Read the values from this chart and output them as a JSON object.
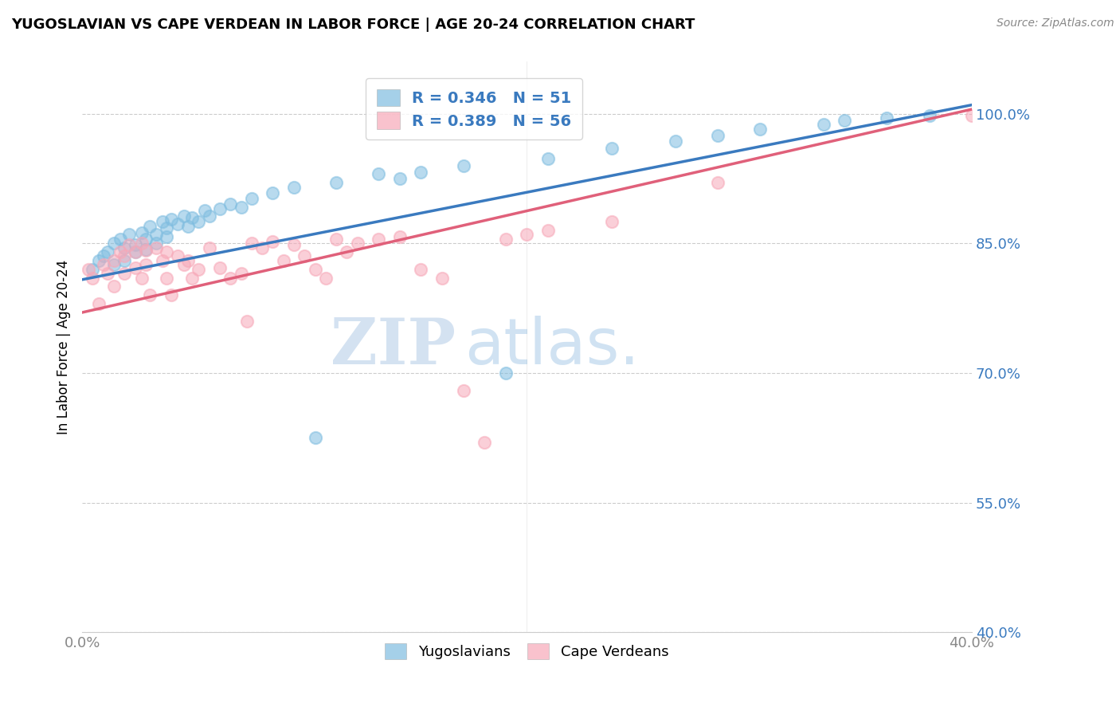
{
  "title": "YUGOSLAVIAN VS CAPE VERDEAN IN LABOR FORCE | AGE 20-24 CORRELATION CHART",
  "source": "Source: ZipAtlas.com",
  "ylabel": "In Labor Force | Age 20-24",
  "xlim": [
    0.0,
    0.42
  ],
  "ylim": [
    0.4,
    1.06
  ],
  "yticks": [
    0.4,
    0.55,
    0.7,
    0.85,
    1.0
  ],
  "ytick_labels": [
    "40.0%",
    "55.0%",
    "70.0%",
    "85.0%",
    "100.0%"
  ],
  "xtick_labels": [
    "0.0%",
    "40.0%"
  ],
  "blue_color": "#7fbde0",
  "pink_color": "#f7a8b8",
  "line_blue": "#3a7abf",
  "line_pink": "#e0607a",
  "legend_text_color": "#3a7abf",
  "R_blue": 0.346,
  "N_blue": 51,
  "R_pink": 0.389,
  "N_pink": 56,
  "watermark_zip": "ZIP",
  "watermark_atlas": "atlas.",
  "blue_points_x": [
    0.005,
    0.008,
    0.01,
    0.012,
    0.015,
    0.015,
    0.018,
    0.02,
    0.02,
    0.022,
    0.025,
    0.025,
    0.028,
    0.03,
    0.03,
    0.032,
    0.035,
    0.035,
    0.038,
    0.04,
    0.04,
    0.042,
    0.045,
    0.048,
    0.05,
    0.052,
    0.055,
    0.058,
    0.06,
    0.065,
    0.07,
    0.075,
    0.08,
    0.09,
    0.1,
    0.11,
    0.12,
    0.14,
    0.15,
    0.16,
    0.18,
    0.2,
    0.22,
    0.25,
    0.28,
    0.3,
    0.32,
    0.35,
    0.36,
    0.38,
    0.4
  ],
  "blue_points_y": [
    0.82,
    0.83,
    0.835,
    0.84,
    0.85,
    0.825,
    0.855,
    0.83,
    0.845,
    0.86,
    0.848,
    0.84,
    0.862,
    0.855,
    0.843,
    0.87,
    0.86,
    0.85,
    0.875,
    0.868,
    0.858,
    0.878,
    0.872,
    0.882,
    0.87,
    0.88,
    0.875,
    0.888,
    0.882,
    0.89,
    0.895,
    0.892,
    0.902,
    0.908,
    0.915,
    0.625,
    0.92,
    0.93,
    0.925,
    0.932,
    0.94,
    0.7,
    0.948,
    0.96,
    0.968,
    0.975,
    0.982,
    0.988,
    0.992,
    0.995,
    0.998
  ],
  "pink_points_x": [
    0.003,
    0.005,
    0.008,
    0.01,
    0.012,
    0.015,
    0.015,
    0.018,
    0.02,
    0.02,
    0.022,
    0.025,
    0.025,
    0.028,
    0.028,
    0.03,
    0.03,
    0.032,
    0.035,
    0.038,
    0.04,
    0.04,
    0.042,
    0.045,
    0.048,
    0.05,
    0.052,
    0.055,
    0.06,
    0.065,
    0.07,
    0.075,
    0.078,
    0.08,
    0.085,
    0.09,
    0.095,
    0.1,
    0.105,
    0.11,
    0.115,
    0.12,
    0.125,
    0.13,
    0.14,
    0.15,
    0.16,
    0.17,
    0.18,
    0.19,
    0.2,
    0.21,
    0.22,
    0.25,
    0.3,
    0.42
  ],
  "pink_points_y": [
    0.82,
    0.81,
    0.78,
    0.825,
    0.815,
    0.83,
    0.8,
    0.84,
    0.835,
    0.815,
    0.848,
    0.84,
    0.822,
    0.85,
    0.81,
    0.842,
    0.825,
    0.79,
    0.845,
    0.83,
    0.84,
    0.81,
    0.79,
    0.835,
    0.825,
    0.83,
    0.81,
    0.82,
    0.845,
    0.822,
    0.81,
    0.815,
    0.76,
    0.85,
    0.845,
    0.852,
    0.83,
    0.848,
    0.835,
    0.82,
    0.81,
    0.855,
    0.84,
    0.85,
    0.855,
    0.858,
    0.82,
    0.81,
    0.68,
    0.62,
    0.855,
    0.86,
    0.865,
    0.875,
    0.92,
    0.998
  ],
  "line_blue_x0": 0.0,
  "line_blue_x1": 0.42,
  "line_blue_y0": 0.808,
  "line_blue_y1": 1.01,
  "line_pink_x0": 0.0,
  "line_pink_x1": 0.42,
  "line_pink_y0": 0.77,
  "line_pink_y1": 1.005
}
